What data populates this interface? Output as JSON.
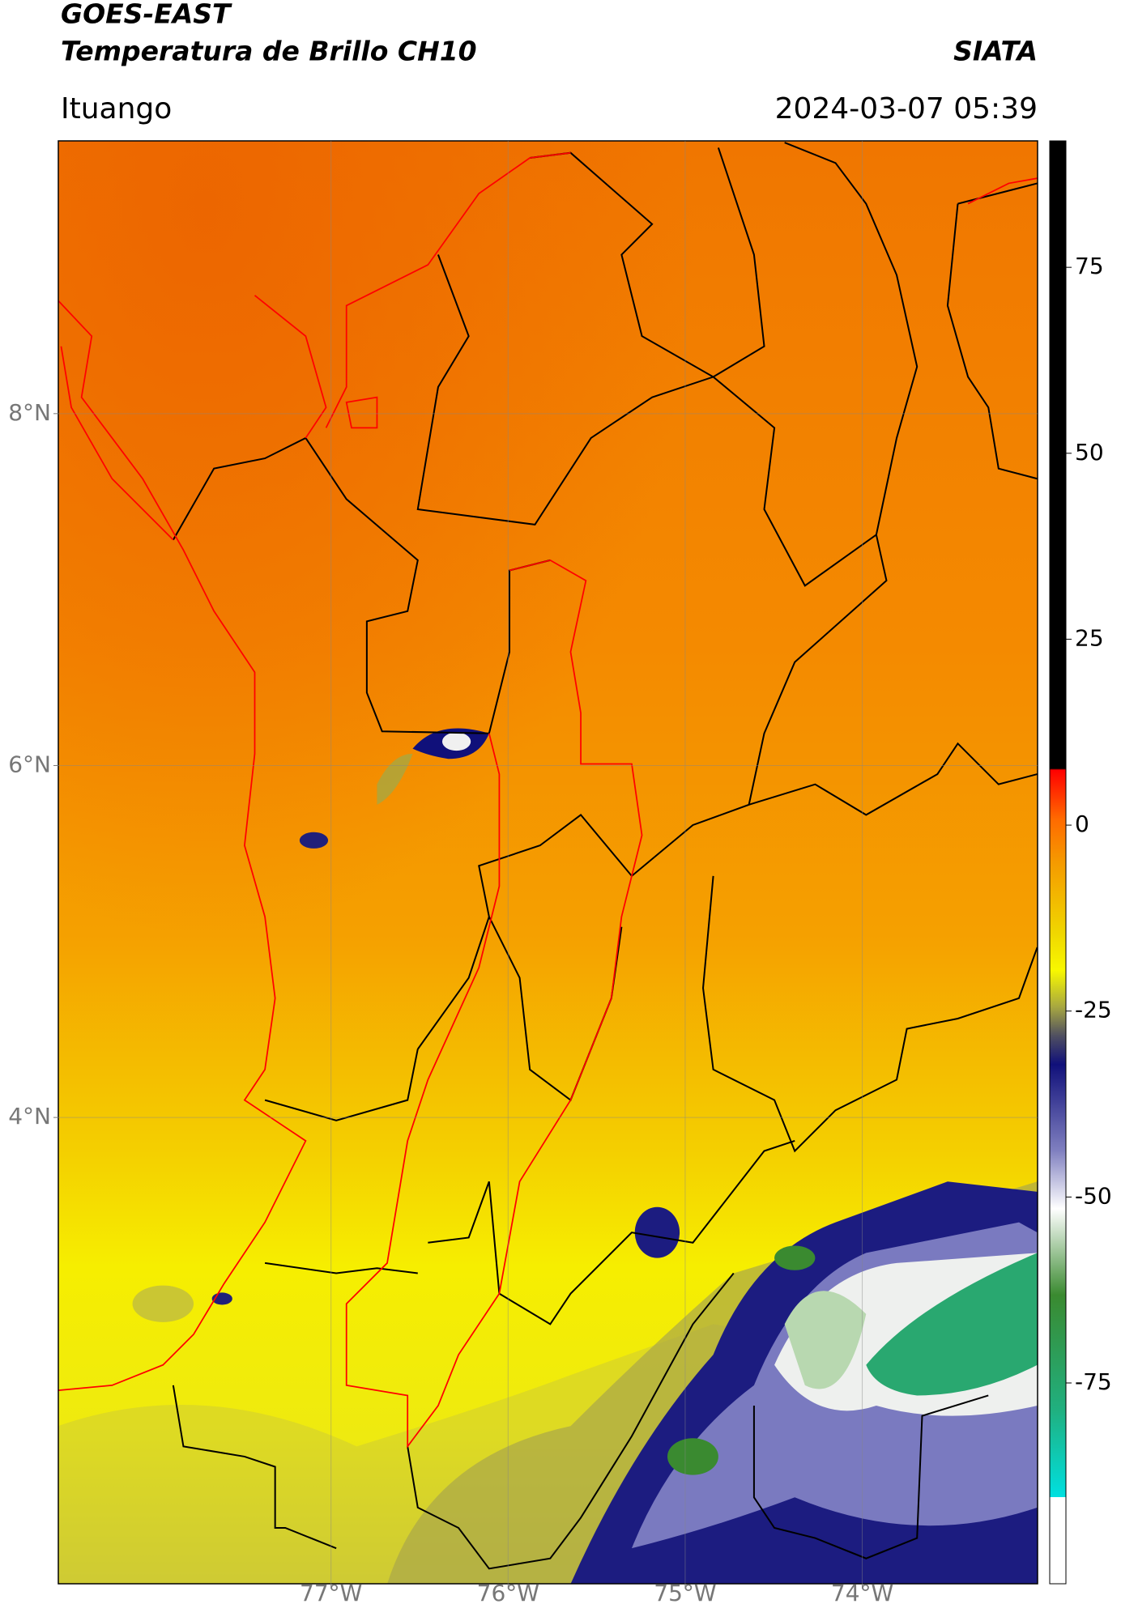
{
  "chart_data": {
    "type": "map",
    "title": "GOES-EAST",
    "subtitle": "Temperatura de Brillo CH10",
    "source": "SIATA",
    "location": "Ituango",
    "datetime": "2024-03-07 05:39",
    "xlim": [
      -78.54,
      -73.01
    ],
    "ylim": [
      1.35,
      9.55
    ],
    "xticks": [
      {
        "value": -77,
        "label": "77°W"
      },
      {
        "value": -76,
        "label": "76°W"
      },
      {
        "value": -75,
        "label": "75°W"
      },
      {
        "value": -74,
        "label": "74°W"
      }
    ],
    "yticks": [
      {
        "value": 8,
        "label": "8°N"
      },
      {
        "value": 6,
        "label": "6°N"
      },
      {
        "value": 4,
        "label": "4°N"
      }
    ],
    "grid": true,
    "colorbar": {
      "clim": [
        -102,
        92
      ],
      "ticks": [
        75,
        50,
        25,
        0,
        -25,
        -50,
        -75
      ]
    }
  }
}
